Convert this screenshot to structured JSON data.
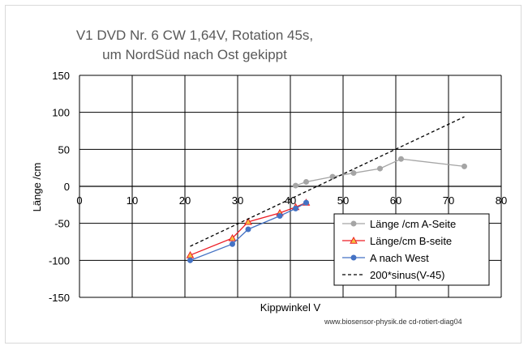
{
  "chart_data": {
    "type": "line",
    "title_line1": "V1 DVD Nr. 6  CW 1,64V, Rotation 45s,",
    "title_line2": "um NordSüd nach Ost gekippt",
    "xlabel": "Kippwinkel  V",
    "ylabel": "Länge /cm",
    "xlim": [
      0,
      80
    ],
    "ylim": [
      -150,
      150
    ],
    "x_ticks": [
      "0",
      "10",
      "20",
      "30",
      "40",
      "50",
      "60",
      "70",
      "80"
    ],
    "y_ticks": [
      "150",
      "100",
      "50",
      "0",
      "-50",
      "-100",
      "-150"
    ],
    "grid": "major",
    "legend_position": "bottom-right",
    "series": [
      {
        "name": "Länge /cm A-Seite",
        "color": "#a5a5a5",
        "marker": "circle",
        "dash": "",
        "x": [
          41,
          43,
          48,
          52,
          57,
          61,
          73
        ],
        "y": [
          1,
          6,
          13,
          18,
          24,
          37,
          27
        ]
      },
      {
        "name": "Länge/cm B-seite",
        "color": "#ed1c24",
        "marker": "triangle",
        "dash": "",
        "x": [
          21,
          29,
          32,
          38,
          41,
          43
        ],
        "y": [
          -93,
          -70,
          -48,
          -36,
          -28,
          -22
        ]
      },
      {
        "name": "A nach West",
        "color": "#4472c4",
        "marker": "circle",
        "dash": "",
        "x": [
          21,
          29,
          32,
          38,
          41,
          43
        ],
        "y": [
          -100,
          -78,
          -58,
          -40,
          -30,
          -22
        ]
      },
      {
        "name": "200*sinus(V-45)",
        "color": "#000000",
        "marker": "none",
        "dash": "4,3",
        "x": [
          21,
          73
        ],
        "y": [
          -81,
          94
        ]
      }
    ]
  },
  "footer_text": "www.biosensor-physik.de  cd-rotiert-diag04"
}
